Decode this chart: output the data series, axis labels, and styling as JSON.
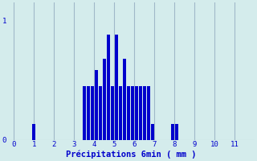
{
  "title": "",
  "xlabel": "Précipitations 6min ( mm )",
  "ylabel": "",
  "background_color": "#d4ecec",
  "bar_color": "#0000cc",
  "grid_color": "#a0b8c8",
  "text_color": "#0000cc",
  "xlim": [
    -0.3,
    12.0
  ],
  "ylim": [
    0,
    1.15
  ],
  "xticks": [
    0,
    1,
    2,
    3,
    4,
    5,
    6,
    7,
    8,
    9,
    10,
    11
  ],
  "yticks": [
    0,
    1
  ],
  "bar_positions": [
    1.0,
    3.5,
    3.7,
    3.9,
    4.1,
    4.3,
    4.5,
    4.7,
    4.9,
    5.1,
    5.3,
    5.5,
    5.7,
    5.9,
    6.1,
    6.3,
    6.5,
    6.7,
    6.9,
    7.9,
    8.1
  ],
  "bar_heights": [
    0.13,
    0.45,
    0.45,
    0.45,
    0.58,
    0.45,
    0.68,
    0.88,
    0.45,
    0.88,
    0.45,
    0.68,
    0.45,
    0.45,
    0.45,
    0.45,
    0.45,
    0.45,
    0.13,
    0.13,
    0.13
  ],
  "bar_width": 0.16,
  "figsize": [
    3.2,
    2.0
  ],
  "dpi": 100
}
